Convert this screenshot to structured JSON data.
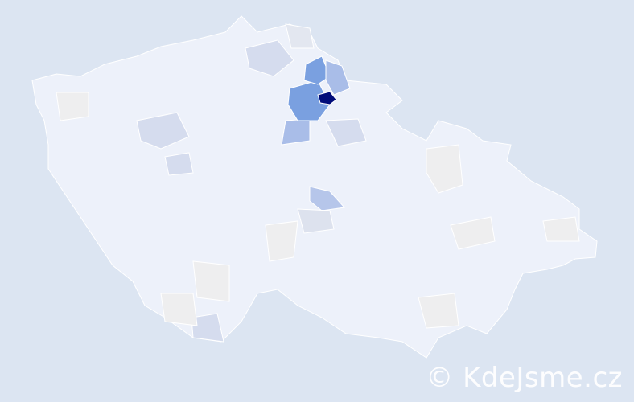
{
  "map": {
    "colors": {
      "background": "#dce5f2",
      "base": "#edf1fa",
      "neutral": "#eeeeef",
      "light": "#d5dcee",
      "medium": "#a9bde8",
      "strong": "#7aa0e0",
      "highest": "#000c7a",
      "border": "#ffffff"
    }
  },
  "watermark": "© KdeJsme.cz"
}
